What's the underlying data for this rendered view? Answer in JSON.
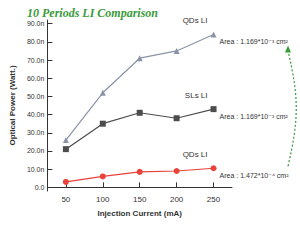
{
  "chart_data": {
    "type": "line",
    "title": "10 Periods LI Comparison",
    "x_label": "Injection Current (mA)",
    "y_label": "Optical Power (Watt.)",
    "categories": [
      "50",
      "100",
      "150",
      "200",
      "250"
    ],
    "series": [
      {
        "name": "QDs LI",
        "color": "#8a94a8",
        "marker": "triangle",
        "values": [
          26,
          52,
          71,
          75,
          84
        ],
        "annotation": "Area : 1.169*10⁻³ cm²"
      },
      {
        "name": "SLs LI",
        "color": "#4d4d4d",
        "marker": "square",
        "values": [
          21,
          35,
          41,
          38,
          43
        ],
        "annotation": "Area : 1.169*10⁻³ cm²"
      },
      {
        "name": "QDs LI",
        "color": "#e8423a",
        "marker": "circle",
        "values": [
          3,
          6,
          8.5,
          9,
          10.5
        ],
        "annotation": "Area : 1.472*10⁻⁴ cm²"
      }
    ],
    "ylim": [
      -2,
      92
    ],
    "yticks": [
      {
        "value": 0,
        "label": "0.0"
      },
      {
        "value": 10,
        "label": "10.0n"
      },
      {
        "value": 20,
        "label": "20.0n"
      },
      {
        "value": 30,
        "label": "30.0n"
      },
      {
        "value": 40,
        "label": "40.0n"
      },
      {
        "value": 50,
        "label": "50.0n"
      },
      {
        "value": 60,
        "label": "60.0n"
      },
      {
        "value": 70,
        "label": "70.0n"
      },
      {
        "value": 80,
        "label": "80.0n"
      },
      {
        "value": 90,
        "label": "90.0n"
      }
    ],
    "grid": false
  }
}
